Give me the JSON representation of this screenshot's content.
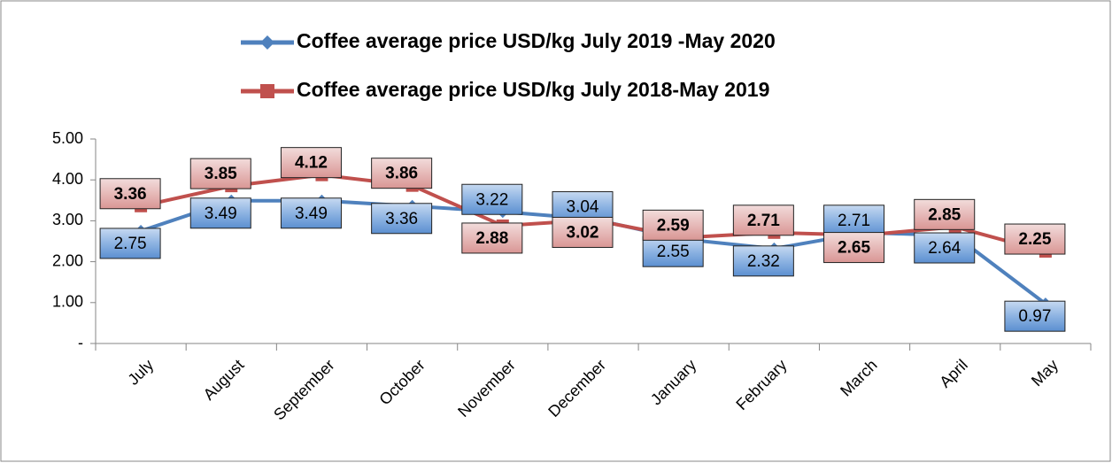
{
  "chart_data": {
    "type": "line",
    "categories": [
      "July",
      "August",
      "September",
      "October",
      "November",
      "December",
      "January",
      "February",
      "March",
      "April",
      "May"
    ],
    "series": [
      {
        "name": "Coffee  average price USD/kg July 2019 -May 2020",
        "color": "#4f81bd",
        "values": [
          2.75,
          3.49,
          3.49,
          3.36,
          3.22,
          3.04,
          2.55,
          2.32,
          2.71,
          2.64,
          0.97
        ]
      },
      {
        "name": "Coffee  average price USD/kg July 2018-May 2019",
        "color": "#c0504d",
        "values": [
          3.36,
          3.85,
          4.12,
          3.86,
          2.88,
          3.02,
          2.59,
          2.71,
          2.65,
          2.85,
          2.25
        ]
      }
    ],
    "ylim": [
      0,
      5
    ],
    "yticks": [
      {
        "value": 0,
        "label": "-"
      },
      {
        "value": 1,
        "label": "1.00"
      },
      {
        "value": 2,
        "label": "2.00"
      },
      {
        "value": 3,
        "label": "3.00"
      },
      {
        "value": 4,
        "label": "4.00"
      },
      {
        "value": 5,
        "label": "5.00"
      }
    ]
  }
}
